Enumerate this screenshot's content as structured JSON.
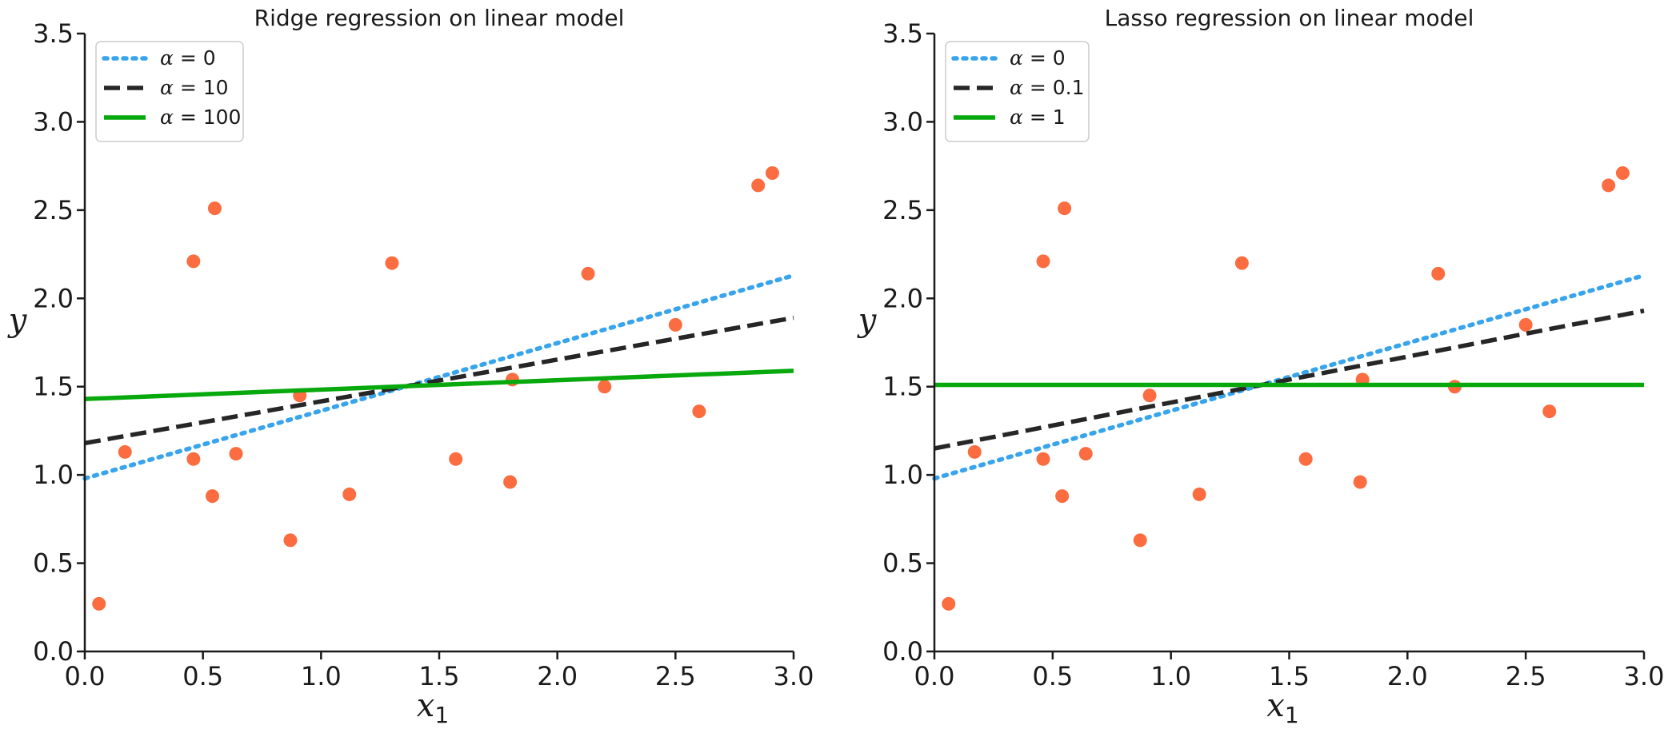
{
  "chart_data": [
    {
      "type": "scatter",
      "title": "Ridge regression on linear model",
      "xlabel": "x",
      "xlabel_subscript": "1",
      "ylabel": "y",
      "xlim": [
        0.0,
        3.0
      ],
      "ylim": [
        0.0,
        3.5
      ],
      "xticks": [
        "0.0",
        "0.5",
        "1.0",
        "1.5",
        "2.0",
        "2.5",
        "3.0"
      ],
      "yticks": [
        "0.0",
        "0.5",
        "1.0",
        "1.5",
        "2.0",
        "2.5",
        "3.0",
        "3.5"
      ],
      "legend_position": "top-left",
      "points": {
        "color": "#fb6c40",
        "x": [
          0.06,
          0.17,
          0.46,
          0.46,
          0.54,
          0.55,
          0.64,
          0.87,
          0.91,
          1.12,
          1.3,
          1.57,
          1.8,
          1.81,
          2.13,
          2.2,
          2.5,
          2.6,
          2.85,
          2.91
        ],
        "y": [
          0.27,
          1.13,
          2.21,
          1.09,
          0.88,
          2.51,
          1.12,
          0.63,
          1.45,
          0.89,
          2.2,
          1.09,
          0.96,
          1.54,
          2.14,
          1.5,
          1.85,
          1.36,
          2.64,
          2.71
        ]
      },
      "series": [
        {
          "alpha_label": "α",
          "value_label": " = 0",
          "style": "dotted",
          "color": "#38a4ec",
          "x": [
            0.0,
            3.0
          ],
          "y": [
            0.98,
            2.13
          ]
        },
        {
          "alpha_label": "α",
          "value_label": " = 10",
          "style": "dashed",
          "color": "#262626",
          "x": [
            0.0,
            3.0
          ],
          "y": [
            1.18,
            1.89
          ]
        },
        {
          "alpha_label": "α",
          "value_label": " = 100",
          "style": "solid",
          "color": "#07a90d",
          "x": [
            0.0,
            3.0
          ],
          "y": [
            1.43,
            1.59
          ]
        }
      ]
    },
    {
      "type": "scatter",
      "title": "Lasso regression on linear model",
      "xlabel": "x",
      "xlabel_subscript": "1",
      "ylabel": "y",
      "xlim": [
        0.0,
        3.0
      ],
      "ylim": [
        0.0,
        3.5
      ],
      "xticks": [
        "0.0",
        "0.5",
        "1.0",
        "1.5",
        "2.0",
        "2.5",
        "3.0"
      ],
      "yticks": [
        "0.0",
        "0.5",
        "1.0",
        "1.5",
        "2.0",
        "2.5",
        "3.0",
        "3.5"
      ],
      "legend_position": "top-left",
      "points": {
        "color": "#fb6c40",
        "x": [
          0.06,
          0.17,
          0.46,
          0.46,
          0.54,
          0.55,
          0.64,
          0.87,
          0.91,
          1.12,
          1.3,
          1.57,
          1.8,
          1.81,
          2.13,
          2.2,
          2.5,
          2.6,
          2.85,
          2.91
        ],
        "y": [
          0.27,
          1.13,
          2.21,
          1.09,
          0.88,
          2.51,
          1.12,
          0.63,
          1.45,
          0.89,
          2.2,
          1.09,
          0.96,
          1.54,
          2.14,
          1.5,
          1.85,
          1.36,
          2.64,
          2.71
        ]
      },
      "series": [
        {
          "alpha_label": "α",
          "value_label": " = 0",
          "style": "dotted",
          "color": "#38a4ec",
          "x": [
            0.0,
            3.0
          ],
          "y": [
            0.98,
            2.13
          ]
        },
        {
          "alpha_label": "α",
          "value_label": " = 0.1",
          "style": "dashed",
          "color": "#262626",
          "x": [
            0.0,
            3.0
          ],
          "y": [
            1.15,
            1.93
          ]
        },
        {
          "alpha_label": "α",
          "value_label": " = 1",
          "style": "solid",
          "color": "#07a90d",
          "x": [
            0.0,
            3.0
          ],
          "y": [
            1.51,
            1.51
          ]
        }
      ]
    }
  ]
}
